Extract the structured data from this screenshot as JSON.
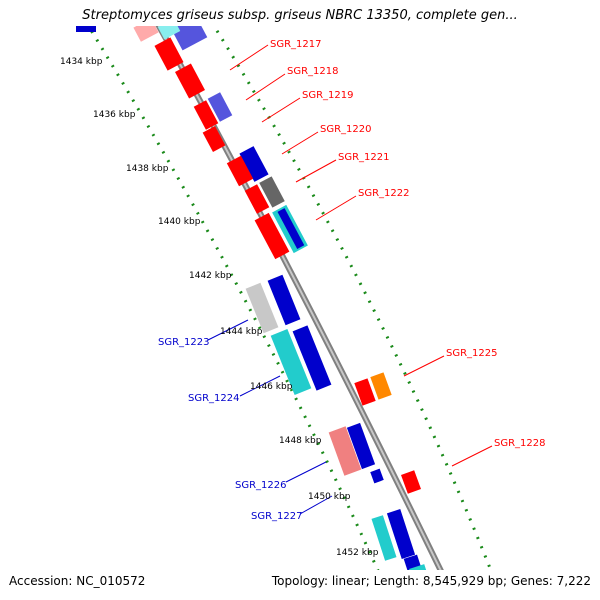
{
  "title": "Streptomyces griseus subsp. griseus NBRC 13350, complete gen...",
  "footer": {
    "accession": "Accession: NC_010572",
    "topology": "Topology: linear; Length: 8,545,929 bp; Genes: 7,222"
  },
  "ticks": [
    "1434 kbp",
    "1436 kbp",
    "1438 kbp",
    "1440 kbp",
    "1442 kbp",
    "1444 kbp",
    "1446 kbp",
    "1448 kbp",
    "1450 kbp",
    "1452 kbp"
  ],
  "gene_labels_forward": [
    "SGR_1217",
    "SGR_1218",
    "SGR_1219",
    "SGR_1220",
    "SGR_1221",
    "SGR_1222",
    "SGR_1225",
    "SGR_1228"
  ],
  "gene_labels_reverse": [
    "SGR_1223",
    "SGR_1224",
    "SGR_1226",
    "SGR_1227"
  ],
  "colors": {
    "backbone": "#808080",
    "forward_label": "#ff0000",
    "reverse_label": "#0000cc",
    "dotted_guide": "#1a8a1a",
    "red_gene": "#ff0000",
    "blue_gene": "#0000cc",
    "cyan_gene": "#22cccc",
    "orange_gene": "#ff8800",
    "gray_gene": "#808080",
    "pink_gene": "#f08080"
  }
}
